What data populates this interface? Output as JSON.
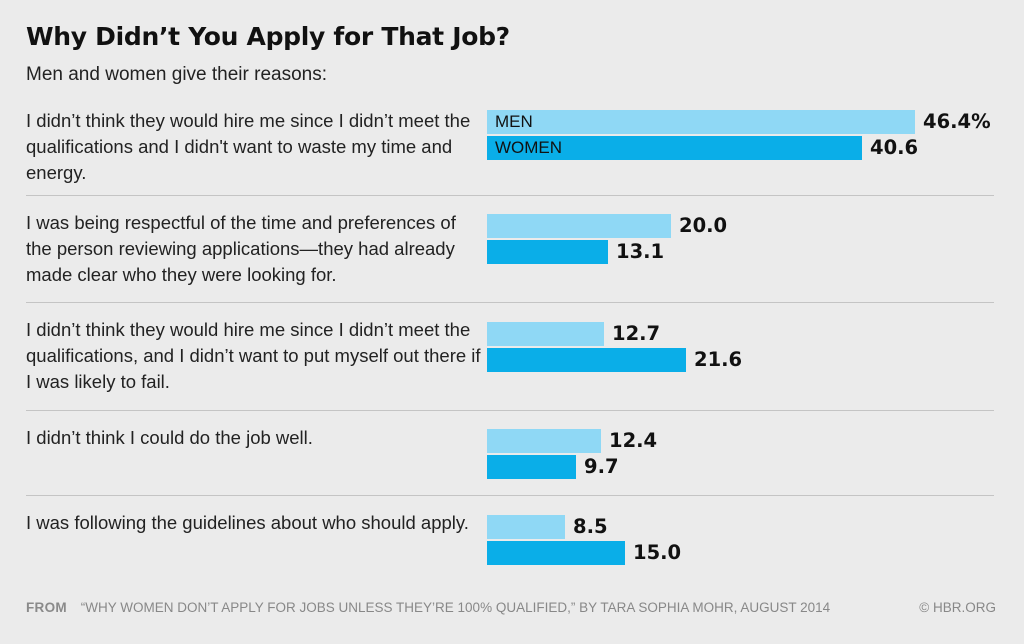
{
  "chart_data": {
    "type": "bar",
    "orientation": "horizontal",
    "title": "Why Didn’t You Apply for That Job?",
    "subtitle": "Men and women give their reasons:",
    "categories": [
      "I didn’t think they would hire me since I didn’t meet the qualifications and I didn't want to waste my time and energy.",
      "I was being respectful of the time and preferences of the person reviewing applications—they had already made clear who they were looking for.",
      "I didn’t think they would hire me since I didn’t meet the qualifications, and I didn’t want to put myself out there if I was likely to fail.",
      "I didn’t think I could do the job well.",
      "I was following the guidelines about who should apply."
    ],
    "series": [
      {
        "name": "MEN",
        "color": "#8fd8f5",
        "values": [
          46.4,
          20.0,
          12.7,
          12.4,
          8.5
        ],
        "labels": [
          "46.4%",
          "20.0",
          "12.7",
          "12.4",
          "8.5"
        ]
      },
      {
        "name": "WOMEN",
        "color": "#0aaee8",
        "values": [
          40.6,
          13.1,
          21.6,
          9.7,
          15.0
        ],
        "labels": [
          "40.6",
          "13.1",
          "21.6",
          "9.7",
          "15.0"
        ]
      }
    ],
    "xlim": [
      0,
      46.4
    ],
    "legend": "inside-first-bars",
    "grid": false
  },
  "footer": {
    "from_label": "FROM",
    "source": "“WHY WOMEN DON’T APPLY FOR JOBS UNLESS THEY’RE 100% QUALIFIED,” BY TARA SOPHIA MOHR, AUGUST 2014",
    "credit": "© HBR.ORG"
  }
}
